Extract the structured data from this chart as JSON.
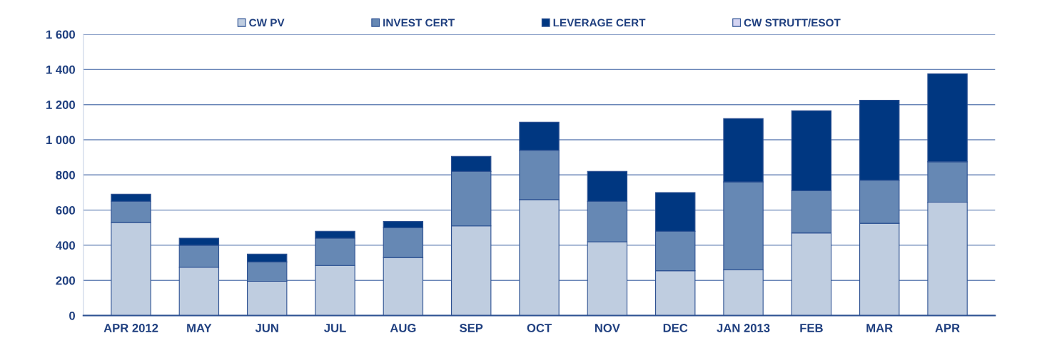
{
  "chart_data": {
    "type": "bar",
    "stacked": true,
    "categories": [
      "APR 2012",
      "MAY",
      "JUN",
      "JUL",
      "AUG",
      "SEP",
      "OCT",
      "NOV",
      "DEC",
      "JAN 2013",
      "FEB",
      "MAR",
      "APR"
    ],
    "series": [
      {
        "name": "CW PV",
        "color": "#bfcde0",
        "values": [
          530,
          275,
          195,
          285,
          330,
          510,
          660,
          420,
          255,
          260,
          470,
          525,
          645
        ]
      },
      {
        "name": "INVEST CERT",
        "color": "#6688b4",
        "values": [
          120,
          125,
          110,
          155,
          170,
          310,
          280,
          230,
          225,
          500,
          240,
          245,
          230
        ]
      },
      {
        "name": "LEVERAGE CERT",
        "color": "#003781",
        "values": [
          40,
          40,
          45,
          40,
          35,
          85,
          160,
          170,
          220,
          360,
          455,
          455,
          500
        ]
      },
      {
        "name": "CW STRUTT/ESOT",
        "color": "#d4d4f2",
        "values": [
          null,
          null,
          null,
          null,
          null,
          null,
          null,
          null,
          null,
          null,
          null,
          null,
          null
        ]
      }
    ],
    "ylim": [
      0,
      1600
    ],
    "yticks": [
      0,
      200,
      400,
      600,
      800,
      {
        "value": 1000,
        "label": "1 000"
      },
      {
        "value": 1200,
        "label": "1 200"
      },
      {
        "value": 1400,
        "label": "1 400"
      },
      {
        "value": 1600,
        "label": "1 600"
      }
    ],
    "grid": "y",
    "legend": "top"
  }
}
